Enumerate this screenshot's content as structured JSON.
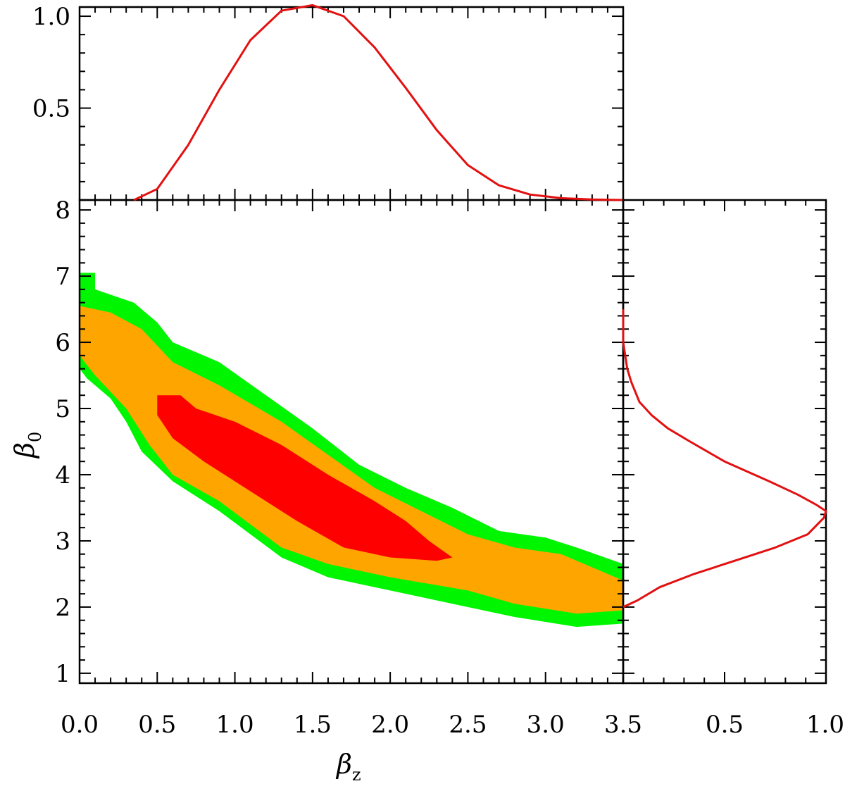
{
  "chart_data": [
    {
      "type": "line",
      "panel": "top-marginal",
      "xlim": [
        0.0,
        3.5
      ],
      "ylim": [
        0.0,
        1.05
      ],
      "y_ticks": [
        0.5,
        1.0
      ],
      "y_tick_labels": [
        "0.5",
        "1.0"
      ],
      "color": "#e31010",
      "x": [
        0.35,
        0.5,
        0.7,
        0.9,
        1.1,
        1.3,
        1.5,
        1.7,
        1.9,
        2.1,
        2.3,
        2.5,
        2.7,
        2.9,
        3.1,
        3.3,
        3.5
      ],
      "y": [
        0.0,
        0.06,
        0.3,
        0.6,
        0.87,
        1.03,
        1.06,
        1.0,
        0.83,
        0.61,
        0.38,
        0.19,
        0.08,
        0.03,
        0.01,
        0.003,
        0.0
      ]
    },
    {
      "type": "area",
      "panel": "contour",
      "xlabel": "β",
      "xlabel_sub": "z",
      "ylabel": "β",
      "ylabel_sub": "0",
      "xlim": [
        0.0,
        3.5
      ],
      "ylim": [
        0.85,
        8.15
      ],
      "x_ticks": [
        0.0,
        0.5,
        1.0,
        1.5,
        2.0,
        2.5,
        3.0,
        3.5
      ],
      "x_tick_labels": [
        "0.0",
        "0.5",
        "1.0",
        "1.5",
        "2.0",
        "2.5",
        "3.0",
        "3.5"
      ],
      "y_ticks": [
        1,
        2,
        3,
        4,
        5,
        6,
        7,
        8
      ],
      "y_tick_labels": [
        "1",
        "2",
        "3",
        "4",
        "5",
        "6",
        "7",
        "8"
      ],
      "regions": [
        {
          "level": "outer",
          "color": "#00f500",
          "points": [
            [
              0.0,
              7.05
            ],
            [
              0.1,
              7.05
            ],
            [
              0.1,
              6.8
            ],
            [
              0.35,
              6.6
            ],
            [
              0.5,
              6.3
            ],
            [
              0.6,
              6.0
            ],
            [
              0.9,
              5.7
            ],
            [
              1.2,
              5.2
            ],
            [
              1.5,
              4.7
            ],
            [
              1.8,
              4.15
            ],
            [
              2.1,
              3.8
            ],
            [
              2.4,
              3.5
            ],
            [
              2.7,
              3.15
            ],
            [
              3.0,
              3.05
            ],
            [
              3.2,
              2.9
            ],
            [
              3.5,
              2.65
            ],
            [
              3.5,
              1.75
            ],
            [
              3.2,
              1.7
            ],
            [
              2.8,
              1.85
            ],
            [
              2.4,
              2.05
            ],
            [
              2.0,
              2.25
            ],
            [
              1.6,
              2.45
            ],
            [
              1.3,
              2.75
            ],
            [
              1.1,
              3.1
            ],
            [
              0.9,
              3.45
            ],
            [
              0.6,
              3.9
            ],
            [
              0.4,
              4.35
            ],
            [
              0.3,
              4.8
            ],
            [
              0.2,
              5.15
            ],
            [
              0.05,
              5.45
            ],
            [
              0.0,
              5.6
            ]
          ]
        },
        {
          "level": "middle",
          "color": "#ffa500",
          "points": [
            [
              0.0,
              6.55
            ],
            [
              0.2,
              6.45
            ],
            [
              0.4,
              6.2
            ],
            [
              0.6,
              5.7
            ],
            [
              0.9,
              5.35
            ],
            [
              1.3,
              4.8
            ],
            [
              1.6,
              4.3
            ],
            [
              1.9,
              3.8
            ],
            [
              2.2,
              3.45
            ],
            [
              2.5,
              3.1
            ],
            [
              2.8,
              2.9
            ],
            [
              3.1,
              2.8
            ],
            [
              3.3,
              2.6
            ],
            [
              3.5,
              2.4
            ],
            [
              3.5,
              1.95
            ],
            [
              3.2,
              1.9
            ],
            [
              2.8,
              2.05
            ],
            [
              2.5,
              2.25
            ],
            [
              2.0,
              2.45
            ],
            [
              1.6,
              2.65
            ],
            [
              1.3,
              2.9
            ],
            [
              1.1,
              3.25
            ],
            [
              0.9,
              3.6
            ],
            [
              0.6,
              4.0
            ],
            [
              0.45,
              4.45
            ],
            [
              0.3,
              5.0
            ],
            [
              0.1,
              5.5
            ],
            [
              0.0,
              5.8
            ]
          ]
        },
        {
          "level": "inner",
          "color": "#ff0000",
          "points": [
            [
              0.5,
              5.2
            ],
            [
              0.65,
              5.2
            ],
            [
              0.75,
              5.0
            ],
            [
              1.0,
              4.8
            ],
            [
              1.3,
              4.45
            ],
            [
              1.6,
              4.0
            ],
            [
              1.9,
              3.6
            ],
            [
              2.1,
              3.3
            ],
            [
              2.25,
              3.0
            ],
            [
              2.4,
              2.75
            ],
            [
              2.3,
              2.7
            ],
            [
              2.0,
              2.75
            ],
            [
              1.7,
              2.9
            ],
            [
              1.4,
              3.3
            ],
            [
              1.1,
              3.75
            ],
            [
              0.8,
              4.2
            ],
            [
              0.6,
              4.55
            ],
            [
              0.5,
              4.9
            ]
          ]
        }
      ]
    },
    {
      "type": "line",
      "panel": "right-marginal",
      "xlim": [
        0.0,
        1.0
      ],
      "ylim": [
        0.85,
        8.15
      ],
      "x_ticks": [
        0.5,
        1.0
      ],
      "x_tick_labels": [
        "0.5",
        "1.0"
      ],
      "color": "#e31010",
      "x": [
        0.0,
        0.0,
        0.02,
        0.04,
        0.08,
        0.14,
        0.22,
        0.33,
        0.5,
        0.72,
        0.86,
        0.95,
        1.0,
        0.99,
        0.91,
        0.75,
        0.55,
        0.35,
        0.18,
        0.07,
        0.0
      ],
      "y": [
        6.5,
        6.0,
        5.6,
        5.4,
        5.1,
        4.9,
        4.7,
        4.5,
        4.2,
        3.9,
        3.7,
        3.55,
        3.45,
        3.35,
        3.1,
        2.9,
        2.7,
        2.5,
        2.3,
        2.1,
        2.0
      ]
    }
  ]
}
